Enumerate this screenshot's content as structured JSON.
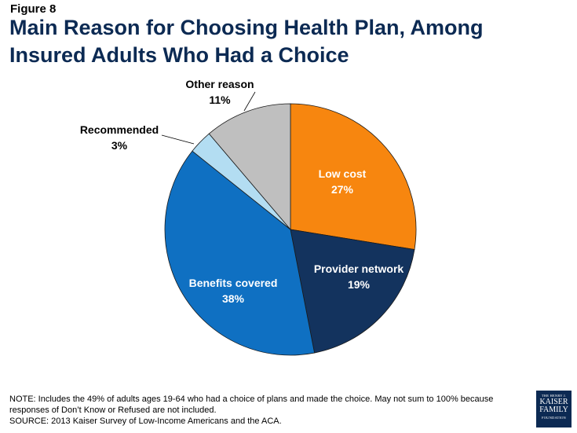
{
  "figure_label": "Figure 8",
  "title": "Main Reason for Choosing Health Plan, Among Insured Adults Who Had a Choice",
  "chart_data": {
    "type": "pie",
    "start_angle_deg": 0,
    "direction": "clockwise",
    "slices": [
      {
        "name": "Low cost",
        "value": 27,
        "label": "27%",
        "color": "#f7860f",
        "label_inside": true,
        "text_color": "#ffffff"
      },
      {
        "name": "Provider network",
        "value": 19,
        "label": "19%",
        "color": "#13335e",
        "label_inside": true,
        "text_color": "#ffffff"
      },
      {
        "name": "Benefits covered",
        "value": 38,
        "label": "38%",
        "color": "#0f70c2",
        "label_inside": true,
        "text_color": "#ffffff"
      },
      {
        "name": "Recommended",
        "value": 3,
        "label": "3%",
        "color": "#b3ddf2",
        "label_inside": false,
        "text_color": "#000000"
      },
      {
        "name": "Other reason",
        "value": 11,
        "label": "11%",
        "color": "#bfbfbf",
        "label_inside": false,
        "text_color": "#000000"
      }
    ]
  },
  "notes": {
    "note": "NOTE: Includes the 49% of adults ages 19-64 who had a choice of plans and made the choice. May not sum to 100% because responses of Don’t Know or Refused are not included.",
    "source": "SOURCE: 2013 Kaiser Survey of Low-Income Americans and the ACA."
  },
  "logo": {
    "line1": "THE HENRY J.",
    "line2": "KAISER",
    "line3": "FAMILY",
    "line4": "FOUNDATION"
  }
}
